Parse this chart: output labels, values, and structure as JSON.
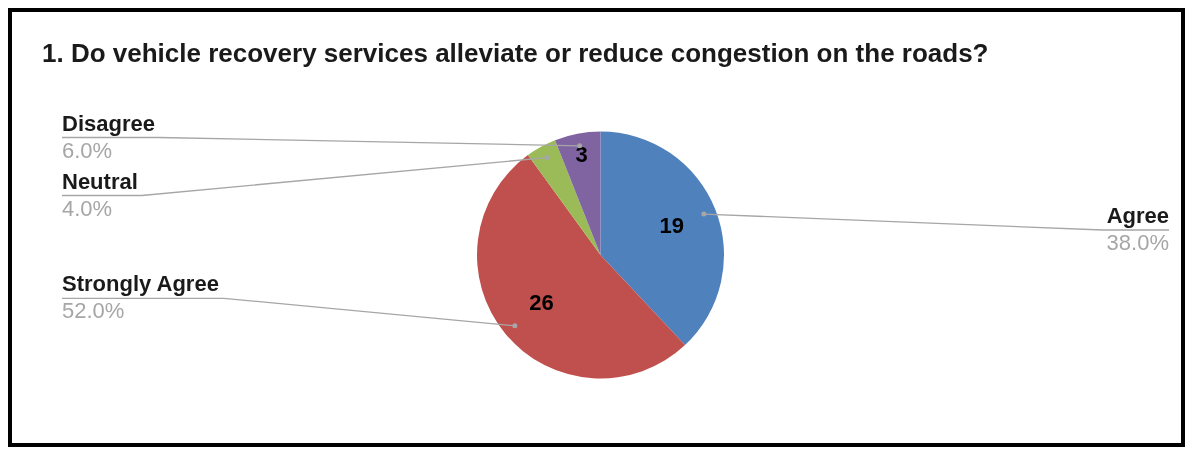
{
  "chart_data": {
    "type": "pie",
    "title": "1. Do vehicle recovery services alleviate or reduce congestion on the roads?",
    "categories": [
      "Agree",
      "Strongly Agree",
      "Neutral",
      "Disagree"
    ],
    "values": [
      19,
      26,
      2,
      3
    ],
    "colors": [
      "#4f81bd",
      "#c0504d",
      "#9bbb59",
      "#8064a2"
    ],
    "value_labels": [
      "19",
      "26",
      null,
      "3"
    ],
    "annotations": [
      "38.0%",
      "52.0%",
      "4.0%",
      "6.0%"
    ],
    "legend": false
  }
}
